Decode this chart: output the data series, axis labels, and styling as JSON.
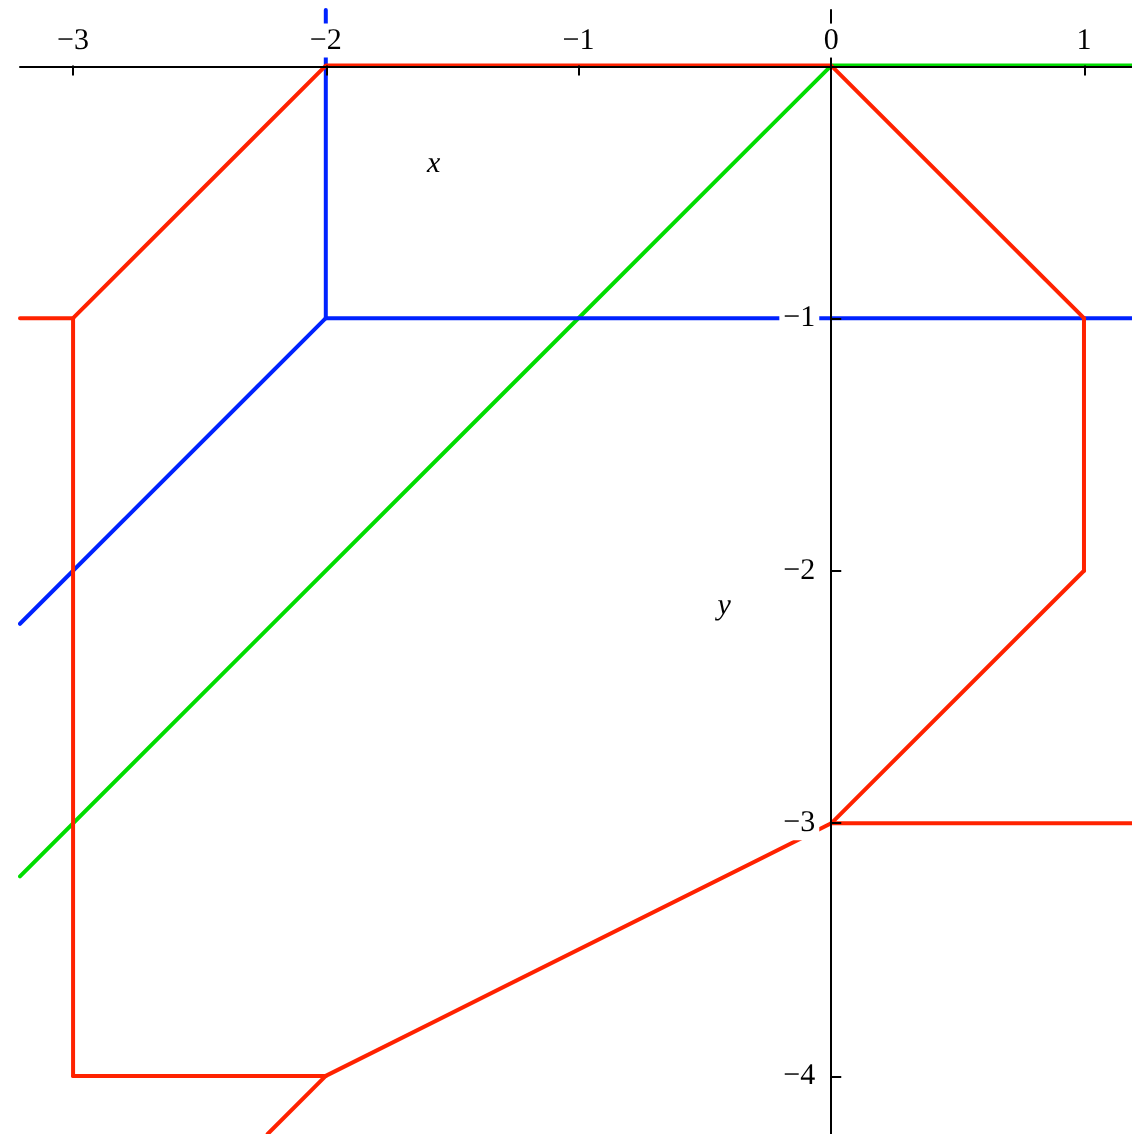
{
  "chart_data": {
    "type": "line",
    "xlabel": "x",
    "ylabel": "y",
    "xlim": [
      -3.21,
      1.19
    ],
    "ylim": [
      -4.23,
      0.22
    ],
    "xticks": [
      {
        "value": -3,
        "label": "−3"
      },
      {
        "value": -2,
        "label": "−2"
      },
      {
        "value": -1,
        "label": "−1"
      },
      {
        "value": 0,
        "label": "0"
      },
      {
        "value": 1,
        "label": "1"
      }
    ],
    "yticks": [
      {
        "value": -4,
        "label": "−4"
      },
      {
        "value": -3,
        "label": "−3"
      },
      {
        "value": -2,
        "label": "−2"
      },
      {
        "value": -1,
        "label": "−1"
      }
    ],
    "marker": "none",
    "line_style": "solid",
    "series": [
      {
        "color": "#00dd00",
        "x": [
          -3.21,
          0
        ],
        "values": [
          -3.21,
          0
        ]
      },
      {
        "color": "#00dd00",
        "x": [
          0,
          1.19
        ],
        "values": [
          0,
          0
        ]
      },
      {
        "color": "#0022ff",
        "x": [
          -2,
          -2
        ],
        "values": [
          0.22,
          -1
        ]
      },
      {
        "color": "#0022ff",
        "x": [
          -2,
          1.19
        ],
        "values": [
          -1,
          -1
        ]
      },
      {
        "color": "#0022ff",
        "x": [
          -3.21,
          -2
        ],
        "values": [
          -2.21,
          -1
        ]
      },
      {
        "color": "#ff2200",
        "x": [
          -3.21,
          -3,
          -2,
          0,
          1
        ],
        "values": [
          -1,
          -1,
          0,
          0,
          -1
        ]
      },
      {
        "color": "#ff2200",
        "x": [
          1,
          1
        ],
        "values": [
          -1,
          -2
        ]
      },
      {
        "color": "#ff2200",
        "x": [
          -2.23,
          -2,
          0,
          1
        ],
        "values": [
          -4.23,
          -4,
          -3,
          -2
        ]
      },
      {
        "color": "#ff2200",
        "x": [
          -3,
          -2
        ],
        "values": [
          -4,
          -4
        ]
      },
      {
        "color": "#ff2200",
        "x": [
          -3,
          -3
        ],
        "values": [
          -4,
          -1
        ]
      },
      {
        "color": "#ff2200",
        "x": [
          0,
          1.19
        ],
        "values": [
          -3,
          -3
        ]
      }
    ]
  }
}
